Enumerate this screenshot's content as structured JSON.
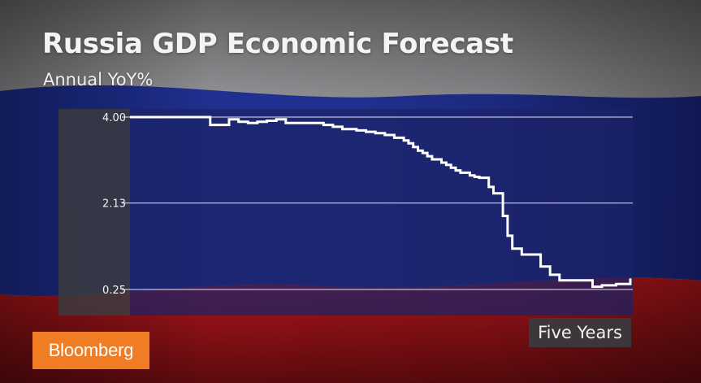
{
  "header": {
    "title": "Russia GDP Economic Forecast",
    "subtitle": "Annual YoY%"
  },
  "branding": {
    "logo_text": "Bloomberg",
    "logo_color": "#f07c24"
  },
  "colors": {
    "flag_white": "#d9d9dc",
    "flag_blue": "#1e2c8c",
    "flag_red": "#b0161b",
    "plot_background": "#1c2268",
    "line": "#ffffff"
  },
  "chart_data": {
    "type": "line",
    "title": "Russia GDP Economic Forecast",
    "subtitle": "Annual YoY%",
    "xlabel": "Five Years",
    "ylabel": "",
    "ylim": [
      0.25,
      4.0
    ],
    "yticks": [
      4.0,
      2.13,
      0.25
    ],
    "ytick_labels": [
      "4.00",
      "2.13",
      "0.25"
    ],
    "grid": true,
    "step": true,
    "series": [
      {
        "values": [
          4.0,
          4.0,
          4.0,
          4.0,
          4.0,
          4.0,
          4.0,
          4.0,
          4.0,
          4.0,
          4.0,
          4.0,
          4.0,
          4.0,
          4.0,
          4.0,
          4.0,
          3.83,
          3.83,
          3.83,
          3.83,
          3.95,
          3.95,
          3.9,
          3.9,
          3.87,
          3.87,
          3.9,
          3.9,
          3.92,
          3.92,
          3.95,
          3.95,
          3.87,
          3.87,
          3.87,
          3.87,
          3.87,
          3.87,
          3.87,
          3.87,
          3.83,
          3.83,
          3.79,
          3.79,
          3.74,
          3.74,
          3.74,
          3.71,
          3.71,
          3.68,
          3.68,
          3.65,
          3.65,
          3.61,
          3.61,
          3.55,
          3.55,
          3.49,
          3.43,
          3.35,
          3.27,
          3.22,
          3.15,
          3.08,
          3.08,
          3.01,
          2.96,
          2.9,
          2.84,
          2.79,
          2.79,
          2.73,
          2.7,
          2.68,
          2.68,
          2.48,
          2.34,
          2.34,
          1.85,
          1.42,
          1.14,
          1.14,
          1.01,
          1.01,
          1.01,
          1.01,
          0.75,
          0.75,
          0.57,
          0.57,
          0.45,
          0.45,
          0.45,
          0.45,
          0.45,
          0.45,
          0.45,
          0.31,
          0.31,
          0.34,
          0.34,
          0.34,
          0.37,
          0.37,
          0.37,
          0.49
        ]
      }
    ]
  }
}
